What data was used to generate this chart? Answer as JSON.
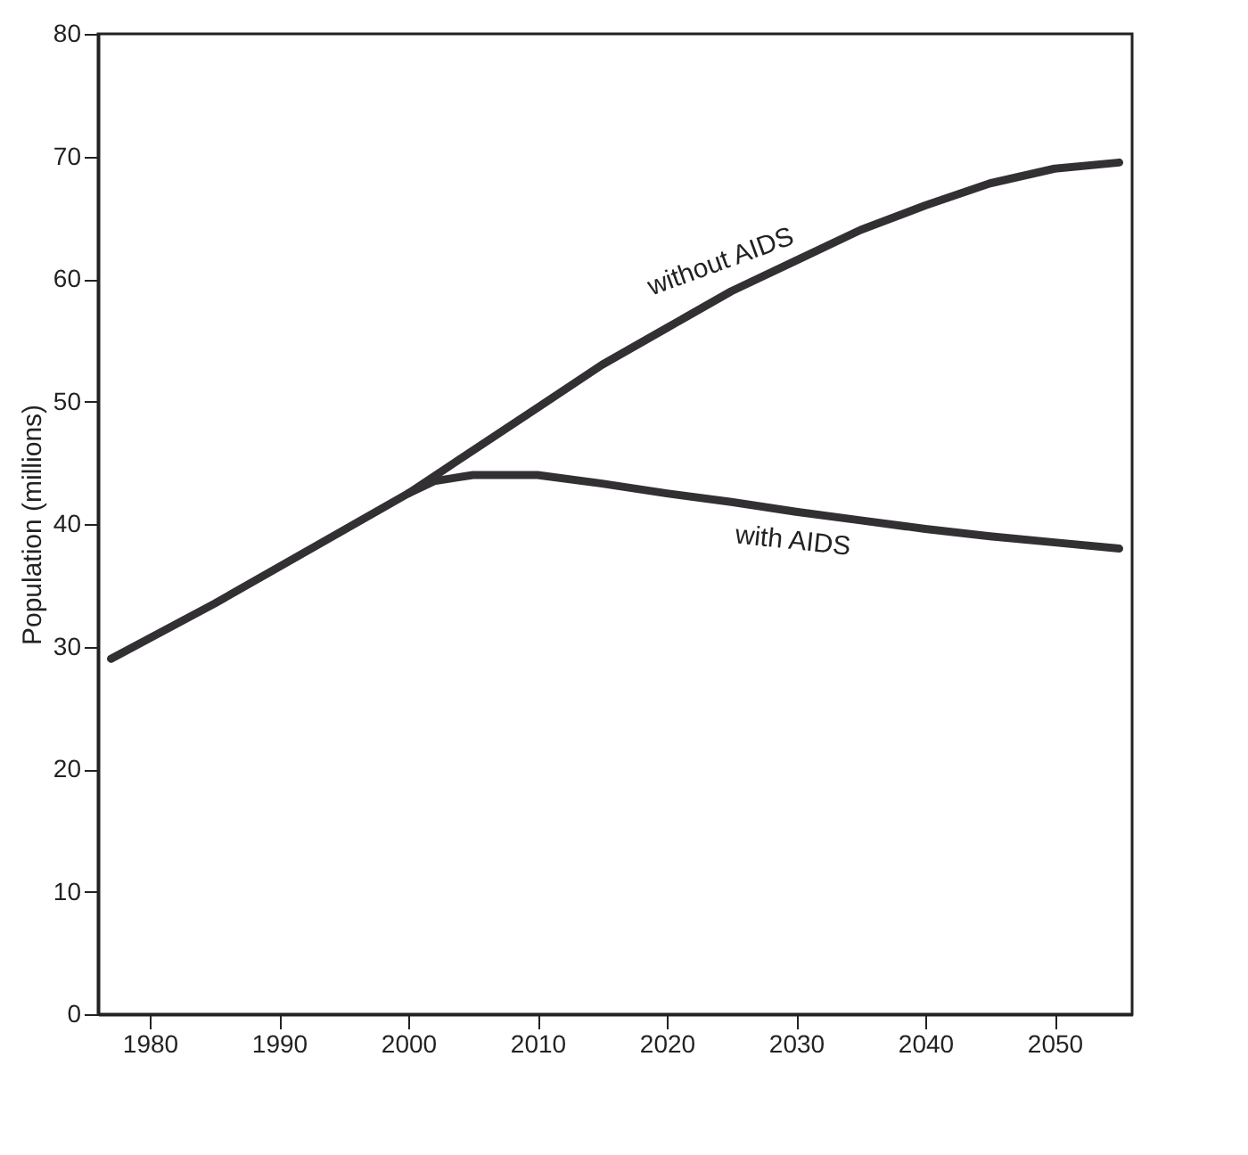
{
  "chart_data": {
    "type": "line",
    "ylabel": "Population (millions)",
    "xlim": [
      1976,
      2056
    ],
    "xticks": [
      1980,
      1990,
      2000,
      2010,
      2020,
      2030,
      2040,
      2050
    ],
    "ylim": [
      0,
      80
    ],
    "yticks": [
      0,
      10,
      20,
      30,
      40,
      50,
      60,
      70,
      80
    ],
    "grid": false,
    "line_style": "solid",
    "marker": "none",
    "series": [
      {
        "color": "#333033",
        "x": [
          1977,
          1985,
          1990,
          1995,
          2000,
          2005,
          2010,
          2015,
          2020,
          2025,
          2030,
          2035,
          2040,
          2045,
          2050,
          2055
        ],
        "values": [
          29,
          33.5,
          36.5,
          39.5,
          42.5,
          46,
          49.5,
          53,
          56,
          59,
          61.5,
          64,
          66,
          67.8,
          69,
          69.5
        ]
      },
      {
        "color": "#333033",
        "x": [
          2000,
          2002,
          2005,
          2010,
          2015,
          2020,
          2025,
          2030,
          2035,
          2040,
          2045,
          2050,
          2055
        ],
        "values": [
          42.5,
          43.5,
          44,
          44,
          43.3,
          42.5,
          41.8,
          41,
          40.3,
          39.6,
          39,
          38.5,
          38
        ]
      }
    ],
    "annotations": [
      "without AIDS",
      "with AIDS"
    ]
  }
}
